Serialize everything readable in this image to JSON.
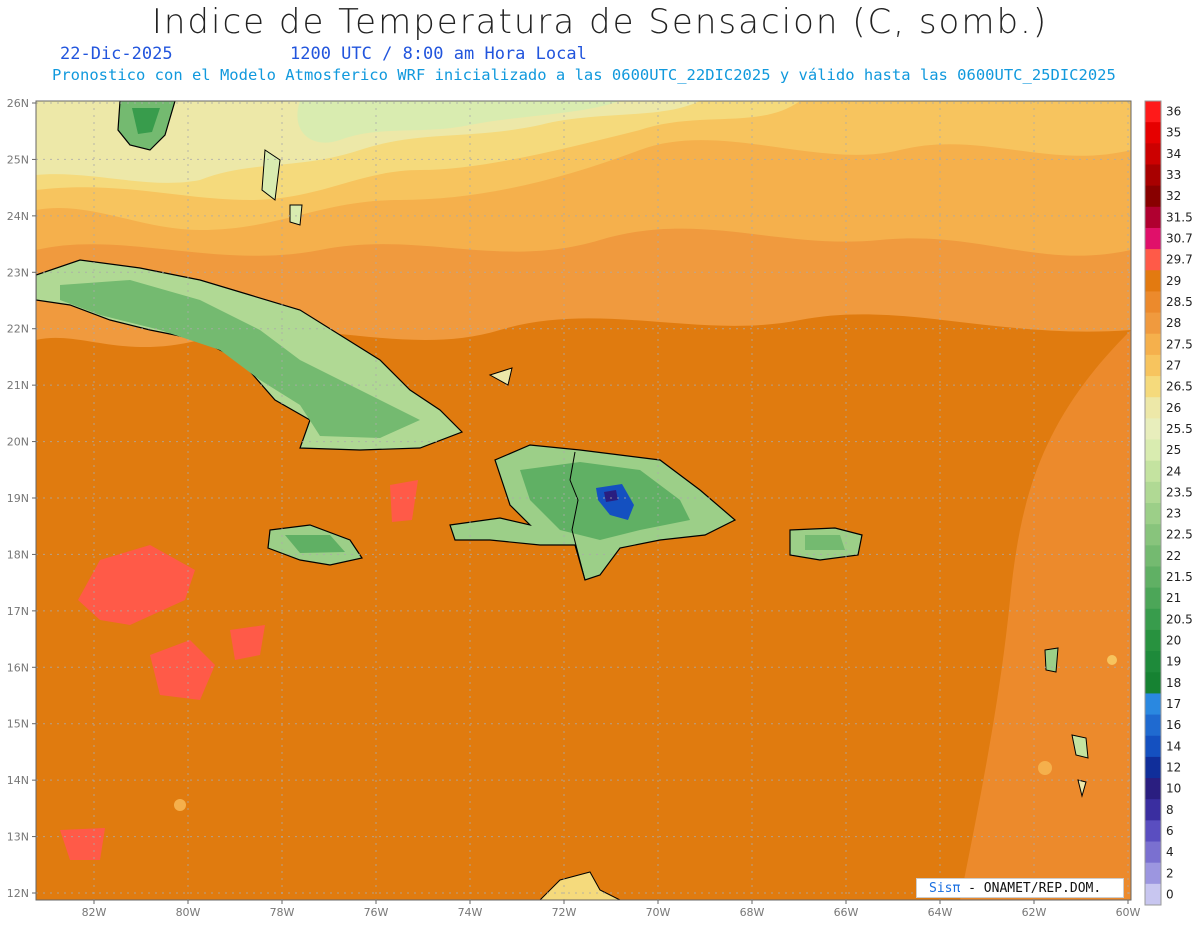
{
  "title": "Indice de Temperatura de Sensacion (C, somb.)",
  "date": "22-Dic-2025",
  "time": "1200 UTC / 8:00 am Hora Local",
  "model_info": "Pronostico con el Modelo Atmosferico WRF inicializado a las 0600UTC_22DIC2025 y válido hasta las  0600UTC_25DIC2025",
  "credit": {
    "brand": "Sisπ",
    "org": " - ONAMET/REP.DOM."
  },
  "map": {
    "lat_labels": [
      "26N",
      "25N",
      "24N",
      "23N",
      "22N",
      "21N",
      "20N",
      "19N",
      "18N",
      "17N",
      "16N",
      "15N",
      "14N",
      "13N",
      "12N"
    ],
    "lon_labels": [
      "82W",
      "80W",
      "78W",
      "76W",
      "74W",
      "72W",
      "70W",
      "68W",
      "66W",
      "64W",
      "62W",
      "60W"
    ],
    "ocean_color": "#e07b0f",
    "land_labels": []
  },
  "colorbar": {
    "levels": [
      "36",
      "35",
      "34",
      "33",
      "32",
      "31.5",
      "30.7",
      "29.7",
      "29",
      "28.5",
      "28",
      "27.5",
      "27",
      "26.5",
      "26",
      "25.5",
      "25",
      "24",
      "23.5",
      "23",
      "22.5",
      "22",
      "21.5",
      "21",
      "20.5",
      "20",
      "19",
      "18",
      "17",
      "16",
      "14",
      "12",
      "10",
      "8",
      "6",
      "4",
      "2",
      "0"
    ],
    "colors": [
      "#ff1a1a",
      "#e60000",
      "#cc0000",
      "#a80000",
      "#880000",
      "#b00030",
      "#e0106a",
      "#ff5a48",
      "#e37a10",
      "#ec8a2c",
      "#f09a3e",
      "#f5b04c",
      "#f7c45e",
      "#f5da7c",
      "#ede8a8",
      "#e8eebc",
      "#d9ecb0",
      "#c4e3a0",
      "#b0d994",
      "#9ccf88",
      "#88c47c",
      "#74ba70",
      "#60b064",
      "#4ca658",
      "#389c4c",
      "#28923f",
      "#1e8a3a",
      "#168232",
      "#2a88e0",
      "#1f6ad0",
      "#1450c0",
      "#102e9a",
      "#2a1e80",
      "#3a2ea0",
      "#5a4ec0",
      "#7a70d0",
      "#9c96e0",
      "#c8c6f0"
    ]
  }
}
